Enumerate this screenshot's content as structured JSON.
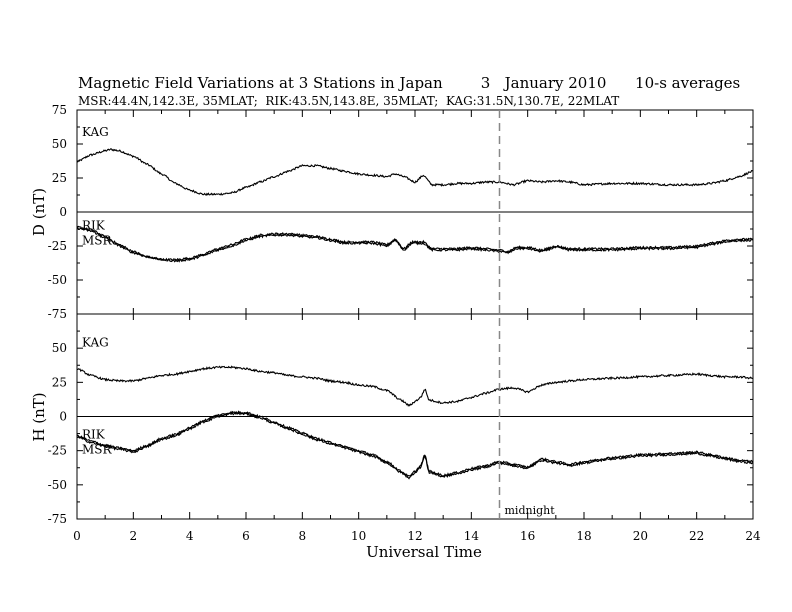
{
  "chart_data": {
    "type": "line",
    "title": "Magnetic Field Variations at 3 Stations in Japan        3   January 2010      10-s averages",
    "subtitle": "MSR:44.4N,142.3E, 35MLAT;  RIK:43.5N,143.8E, 35MLAT;  KAG:31.5N,130.7E, 22MLAT",
    "xlabel": "Universal Time",
    "xlim": [
      0,
      24
    ],
    "x_ticks": [
      "0",
      "2",
      "4",
      "6",
      "8",
      "10",
      "12",
      "14",
      "16",
      "18",
      "20",
      "22",
      "24"
    ],
    "annotation": "midnight",
    "midnight_x": 15,
    "panels": [
      {
        "ylabel": "D (nT)",
        "ylim": [
          -75,
          75
        ],
        "y_ticks": [
          "75",
          "50",
          "25",
          "0",
          "-25",
          "-50",
          "-75"
        ],
        "station_labels": [
          "KAG",
          "RIK",
          "MSR"
        ],
        "series": [
          {
            "name": "KAG",
            "x": [
              0,
              0.5,
              1,
              1.2,
              1.5,
              2,
              2.5,
              3,
              3.5,
              4,
              4.5,
              5,
              5.5,
              6,
              6.5,
              7,
              7.5,
              8,
              8.5,
              9,
              9.5,
              10,
              10.5,
              11,
              11.3,
              11.6,
              12,
              12.3,
              12.6,
              13,
              13.5,
              14,
              14.5,
              15,
              15.5,
              16,
              16.5,
              17,
              17.5,
              18,
              19,
              20,
              21,
              22,
              22.5,
              23,
              23.5,
              24
            ],
            "y": [
              37,
              42,
              45,
              46,
              45,
              41,
              35,
              28,
              21,
              16,
              13,
              13,
              14,
              18,
              22,
              26,
              30,
              34,
              34,
              32,
              30,
              28,
              27,
              26,
              28,
              26,
              22,
              27,
              20,
              20,
              21,
              21,
              22,
              22,
              20,
              23,
              22,
              23,
              22,
              20,
              21,
              21,
              20,
              20,
              21,
              23,
              26,
              30
            ]
          },
          {
            "name": "RIK",
            "x": [
              0,
              0.5,
              1,
              1.5,
              2,
              2.5,
              3,
              3.5,
              4,
              4.5,
              5,
              5.5,
              6,
              6.5,
              7,
              7.5,
              8,
              8.5,
              9,
              9.5,
              10,
              10.5,
              11,
              11.3,
              11.6,
              11.9,
              12.3,
              12.6,
              13,
              13.5,
              14,
              14.5,
              15,
              15.3,
              15.6,
              16,
              16.5,
              17,
              17.5,
              18,
              19,
              20,
              21,
              22,
              22.5,
              23,
              23.5,
              24
            ],
            "y": [
              -11,
              -13,
              -18,
              -24,
              -29,
              -33,
              -35,
              -35,
              -34,
              -31,
              -27,
              -24,
              -20,
              -17,
              -16,
              -16,
              -17,
              -18,
              -20,
              -22,
              -22,
              -22,
              -24,
              -20,
              -27,
              -22,
              -22,
              -27,
              -27,
              -27,
              -26,
              -27,
              -28,
              -29,
              -26,
              -26,
              -28,
              -25,
              -27,
              -27,
              -27,
              -26,
              -26,
              -25,
              -23,
              -21,
              -20,
              -20
            ]
          },
          {
            "name": "MSR",
            "x": [
              0,
              0.5,
              1,
              1.5,
              2,
              2.5,
              3,
              3.5,
              4,
              4.5,
              5,
              5.5,
              6,
              6.5,
              7,
              7.5,
              8,
              8.5,
              9,
              9.5,
              10,
              10.5,
              11,
              11.3,
              11.6,
              11.9,
              12.3,
              12.6,
              13,
              13.5,
              14,
              14.5,
              15,
              15.3,
              15.6,
              16,
              16.5,
              17,
              17.5,
              18,
              19,
              20,
              21,
              22,
              22.5,
              23,
              23.5,
              24
            ],
            "y": [
              -12,
              -14,
              -19,
              -25,
              -30,
              -33,
              -35,
              -36,
              -35,
              -32,
              -28,
              -25,
              -21,
              -18,
              -17,
              -17,
              -18,
              -19,
              -21,
              -23,
              -23,
              -23,
              -25,
              -21,
              -28,
              -23,
              -23,
              -28,
              -28,
              -28,
              -27,
              -28,
              -29,
              -30,
              -27,
              -27,
              -29,
              -26,
              -28,
              -28,
              -28,
              -27,
              -27,
              -26,
              -24,
              -22,
              -21,
              -21
            ]
          }
        ]
      },
      {
        "ylabel": "H (nT)",
        "ylim": [
          -75,
          75
        ],
        "y_ticks": [
          "75",
          "50",
          "25",
          "0",
          "-25",
          "-50",
          "-75"
        ],
        "station_labels": [
          "KAG",
          "RIK",
          "MSR"
        ],
        "series": [
          {
            "name": "KAG",
            "x": [
              0,
              0.5,
              1,
              1.5,
              2,
              2.5,
              3,
              3.5,
              4,
              4.5,
              5,
              5.5,
              6,
              6.5,
              7,
              7.5,
              8,
              8.5,
              9,
              9.5,
              10,
              10.5,
              11,
              11.5,
              11.8,
              12,
              12.2,
              12.35,
              12.5,
              13,
              13.5,
              14,
              14.5,
              15,
              15.5,
              16,
              16.5,
              17,
              17.5,
              18,
              19,
              20,
              21,
              22,
              22.5,
              23,
              23.5,
              24
            ],
            "y": [
              35,
              30,
              27,
              26,
              26,
              28,
              30,
              31,
              33,
              35,
              36,
              36,
              35,
              33,
              32,
              30,
              29,
              28,
              26,
              25,
              23,
              22,
              19,
              12,
              8,
              11,
              14,
              20,
              12,
              10,
              11,
              14,
              17,
              20,
              21,
              18,
              23,
              25,
              26,
              27,
              28,
              29,
              30,
              31,
              30,
              29,
              29,
              28
            ]
          },
          {
            "name": "RIK",
            "x": [
              0,
              0.5,
              1,
              1.5,
              2,
              2.5,
              3,
              3.5,
              4,
              4.5,
              5,
              5.5,
              6,
              6.5,
              7,
              7.5,
              8,
              8.5,
              9,
              9.5,
              10,
              10.5,
              11,
              11.5,
              11.8,
              12,
              12.2,
              12.35,
              12.5,
              13,
              13.5,
              14,
              14.5,
              15,
              15.5,
              16,
              16.5,
              17,
              17.5,
              18,
              19,
              20,
              21,
              22,
              22.5,
              23,
              23.5,
              24
            ],
            "y": [
              -14,
              -18,
              -21,
              -23,
              -25,
              -21,
              -16,
              -13,
              -8,
              -3,
              1,
              3,
              3,
              0,
              -4,
              -8,
              -12,
              -16,
              -19,
              -22,
              -25,
              -28,
              -33,
              -40,
              -44,
              -40,
              -36,
              -28,
              -40,
              -43,
              -41,
              -38,
              -36,
              -33,
              -35,
              -37,
              -31,
              -33,
              -35,
              -33,
              -30,
              -28,
              -27,
              -26,
              -28,
              -30,
              -32,
              -33
            ]
          },
          {
            "name": "MSR",
            "x": [
              0,
              0.5,
              1,
              1.5,
              2,
              2.5,
              3,
              3.5,
              4,
              4.5,
              5,
              5.5,
              6,
              6.5,
              7,
              7.5,
              8,
              8.5,
              9,
              9.5,
              10,
              10.5,
              11,
              11.5,
              11.8,
              12,
              12.2,
              12.35,
              12.5,
              13,
              13.5,
              14,
              14.5,
              15,
              15.5,
              16,
              16.5,
              17,
              17.5,
              18,
              19,
              20,
              21,
              22,
              22.5,
              23,
              23.5,
              24
            ],
            "y": [
              -15,
              -19,
              -22,
              -24,
              -26,
              -22,
              -17,
              -14,
              -9,
              -4,
              0,
              2,
              2,
              -1,
              -5,
              -9,
              -13,
              -17,
              -20,
              -23,
              -26,
              -29,
              -34,
              -41,
              -45,
              -41,
              -37,
              -29,
              -41,
              -44,
              -42,
              -39,
              -37,
              -34,
              -36,
              -38,
              -32,
              -34,
              -36,
              -34,
              -31,
              -29,
              -28,
              -27,
              -29,
              -31,
              -33,
              -34
            ]
          }
        ]
      }
    ]
  }
}
